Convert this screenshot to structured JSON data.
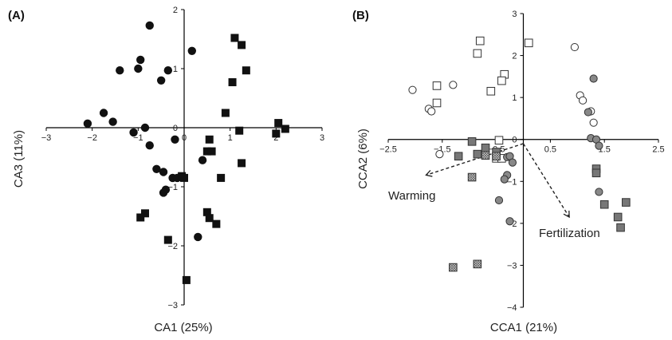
{
  "chart_data": [
    {
      "type": "scatter",
      "panel_label": "(A)",
      "xlabel": "CA1 (25%)",
      "ylabel": "CA3 (11%)",
      "xlim": [
        -3,
        3
      ],
      "ylim": [
        -3,
        2
      ],
      "xticks": [
        "−3",
        "−2",
        "−1",
        "0",
        "1",
        "2",
        "3"
      ],
      "yticks": [
        "−3",
        "−2",
        "−1",
        "0",
        "1",
        "2"
      ],
      "series": [
        {
          "marker": "circle-filled",
          "color": "#111111",
          "points": [
            [
              -0.75,
              1.73
            ],
            [
              -1.4,
              0.97
            ],
            [
              -1.0,
              1.0
            ],
            [
              -0.95,
              1.15
            ],
            [
              -0.35,
              0.97
            ],
            [
              0.17,
              1.3
            ],
            [
              -0.5,
              0.8
            ],
            [
              -1.75,
              0.25
            ],
            [
              -1.55,
              0.1
            ],
            [
              -2.1,
              0.07
            ],
            [
              -1.1,
              -0.08
            ],
            [
              -0.85,
              0.0
            ],
            [
              -0.2,
              -0.2
            ],
            [
              -0.75,
              -0.3
            ],
            [
              -0.6,
              -0.7
            ],
            [
              -0.45,
              -0.75
            ],
            [
              -0.4,
              -1.05
            ],
            [
              -0.45,
              -1.1
            ],
            [
              0.4,
              -0.55
            ],
            [
              -0.25,
              -0.85
            ],
            [
              -0.15,
              -0.85
            ],
            [
              0.3,
              -1.85
            ]
          ]
        },
        {
          "marker": "square-filled",
          "color": "#111111",
          "points": [
            [
              1.1,
              1.52
            ],
            [
              1.25,
              1.4
            ],
            [
              1.35,
              0.97
            ],
            [
              1.05,
              0.77
            ],
            [
              0.9,
              0.25
            ],
            [
              1.2,
              -0.05
            ],
            [
              0.55,
              -0.2
            ],
            [
              2.0,
              -0.1
            ],
            [
              2.05,
              0.08
            ],
            [
              2.2,
              -0.02
            ],
            [
              0.5,
              -0.4
            ],
            [
              0.6,
              -0.4
            ],
            [
              1.25,
              -0.6
            ],
            [
              0.8,
              -0.85
            ],
            [
              -0.05,
              -0.82
            ],
            [
              0.0,
              -0.85
            ],
            [
              -0.85,
              -1.45
            ],
            [
              -0.95,
              -1.52
            ],
            [
              0.5,
              -1.43
            ],
            [
              0.55,
              -1.53
            ],
            [
              0.7,
              -1.63
            ],
            [
              -0.35,
              -1.9
            ],
            [
              0.05,
              -2.58
            ]
          ]
        }
      ]
    },
    {
      "type": "scatter",
      "panel_label": "(B)",
      "xlabel": "CCA1 (21%)",
      "ylabel": "CCA2 (6%)",
      "xlim": [
        -2.5,
        2.5
      ],
      "ylim": [
        -4,
        3
      ],
      "xticks": [
        "−2.5",
        "−1.5",
        "−0.5",
        "0.5",
        "1.5",
        "2.5"
      ],
      "yticks": [
        "−4",
        "−3",
        "−2",
        "−1",
        "0",
        "1",
        "2",
        "3"
      ],
      "arrows": [
        {
          "label": "Warming",
          "from": [
            0.0,
            -0.1
          ],
          "to": [
            -1.8,
            -0.85
          ]
        },
        {
          "label": "Fertilization",
          "from": [
            0.0,
            -0.1
          ],
          "to": [
            0.85,
            -1.85
          ]
        }
      ],
      "series": [
        {
          "marker": "circle-open",
          "color": "#ffffff",
          "points": [
            [
              -2.05,
              1.18
            ],
            [
              -1.75,
              0.73
            ],
            [
              -1.7,
              0.67
            ],
            [
              -1.3,
              1.3
            ],
            [
              -1.55,
              -0.35
            ],
            [
              0.95,
              2.2
            ],
            [
              1.05,
              1.05
            ],
            [
              1.1,
              0.93
            ],
            [
              1.25,
              0.67
            ],
            [
              1.3,
              0.4
            ]
          ]
        },
        {
          "marker": "square-open",
          "color": "#ffffff",
          "points": [
            [
              -0.8,
              2.35
            ],
            [
              -0.85,
              2.05
            ],
            [
              0.1,
              2.3
            ],
            [
              -0.35,
              1.55
            ],
            [
              -0.4,
              1.4
            ],
            [
              -0.6,
              1.15
            ],
            [
              -1.6,
              1.28
            ],
            [
              -1.6,
              0.87
            ],
            [
              -0.45,
              -0.02
            ],
            [
              -0.5,
              -0.45
            ],
            [
              -0.4,
              -0.45
            ]
          ]
        },
        {
          "marker": "circle-gray",
          "color": "#888888",
          "points": [
            [
              1.3,
              1.45
            ],
            [
              1.2,
              0.65
            ],
            [
              1.25,
              0.03
            ],
            [
              1.35,
              0.0
            ],
            [
              1.4,
              -0.15
            ],
            [
              -0.3,
              -0.42
            ],
            [
              -0.25,
              -0.4
            ],
            [
              -0.2,
              -0.55
            ],
            [
              -0.3,
              -0.85
            ],
            [
              -0.35,
              -0.95
            ],
            [
              -0.45,
              -1.45
            ],
            [
              -0.25,
              -1.95
            ],
            [
              1.4,
              -1.25
            ]
          ]
        },
        {
          "marker": "square-gray",
          "color": "#777777",
          "points": [
            [
              1.35,
              -0.7
            ],
            [
              1.35,
              -0.8
            ],
            [
              1.5,
              -1.55
            ],
            [
              1.9,
              -1.5
            ],
            [
              1.75,
              -1.85
            ],
            [
              1.8,
              -2.1
            ],
            [
              -0.95,
              -0.05
            ],
            [
              -0.7,
              -0.2
            ],
            [
              -1.2,
              -0.4
            ],
            [
              -0.5,
              -0.3
            ],
            [
              -0.85,
              -0.35
            ]
          ]
        },
        {
          "marker": "square-hatched",
          "color": "#999999",
          "points": [
            [
              -0.95,
              -0.9
            ],
            [
              -1.3,
              -3.05
            ],
            [
              -0.85,
              -2.97
            ],
            [
              -0.5,
              -0.4
            ],
            [
              -0.7,
              -0.38
            ]
          ]
        }
      ]
    }
  ]
}
